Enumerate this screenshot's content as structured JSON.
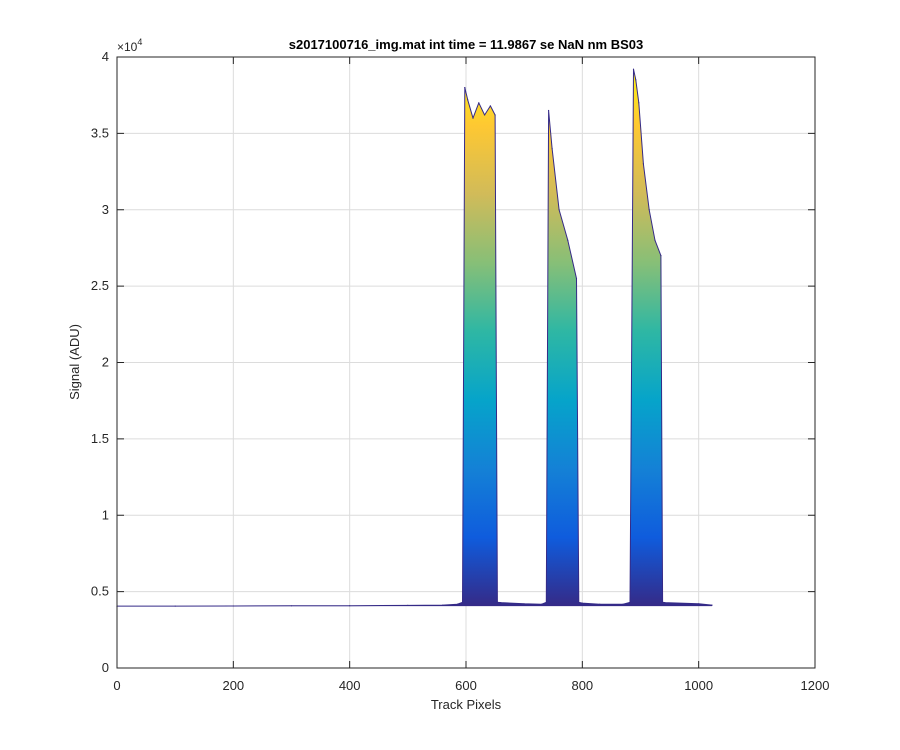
{
  "chart_data": {
    "type": "area",
    "title": "s2017100716_img.mat int time = 11.9867 se  NaN nm BS03",
    "xlabel": "Track Pixels",
    "ylabel": "Signal (ADU)",
    "y_exponent_label": "×10",
    "y_exponent_power": "4",
    "xlim": [
      0,
      1200
    ],
    "ylim": [
      0,
      4
    ],
    "y_scale_factor": 10000,
    "grid": true,
    "legend": "none",
    "x_ticks": [
      0,
      200,
      400,
      600,
      800,
      1000,
      1200
    ],
    "x_tick_labels": [
      "0",
      "200",
      "400",
      "600",
      "800",
      "1000",
      "1200"
    ],
    "y_ticks": [
      0,
      0.5,
      1,
      1.5,
      2,
      2.5,
      3,
      3.5,
      4
    ],
    "y_tick_labels": [
      "0",
      "0.5",
      "1",
      "1.5",
      "2",
      "2.5",
      "3",
      "3.5",
      "4"
    ],
    "baseline": 0.405,
    "series": [
      {
        "x": [
          0,
          100,
          200,
          300,
          400,
          500,
          560,
          585,
          594,
          598,
          603,
          612,
          622,
          632,
          642,
          650,
          654,
          660,
          700,
          730,
          738,
          742,
          748,
          760,
          775,
          790,
          794,
          800,
          830,
          870,
          882,
          888,
          892,
          897,
          905,
          915,
          925,
          935,
          938,
          942,
          1000,
          1023
        ],
        "y": [
          0.405,
          0.405,
          0.406,
          0.407,
          0.408,
          0.41,
          0.412,
          0.418,
          0.43,
          3.8,
          3.72,
          3.6,
          3.7,
          3.62,
          3.68,
          3.62,
          0.43,
          0.428,
          0.42,
          0.418,
          0.43,
          3.65,
          3.4,
          3.0,
          2.8,
          2.55,
          0.43,
          0.425,
          0.418,
          0.418,
          0.43,
          3.92,
          3.85,
          3.7,
          3.3,
          3.0,
          2.8,
          2.7,
          0.43,
          0.428,
          0.42,
          0.412
        ]
      }
    ],
    "colormap": [
      "#352a87",
      "#0f5cdd",
      "#1481d6",
      "#06a4ca",
      "#2eb7a4",
      "#87bf77",
      "#d1bb59",
      "#fec832",
      "#f9fb0e"
    ]
  }
}
